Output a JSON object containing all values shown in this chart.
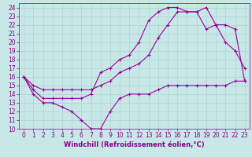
{
  "xlabel": "Windchill (Refroidissement éolien,°C)",
  "bg_color": "#c8e8e8",
  "line_color": "#990099",
  "xlim": [
    -0.5,
    23.5
  ],
  "ylim": [
    10,
    24.5
  ],
  "xticks": [
    0,
    1,
    2,
    3,
    4,
    5,
    6,
    7,
    8,
    9,
    10,
    11,
    12,
    13,
    14,
    15,
    16,
    17,
    18,
    19,
    20,
    21,
    22,
    23
  ],
  "yticks": [
    10,
    11,
    12,
    13,
    14,
    15,
    16,
    17,
    18,
    19,
    20,
    21,
    22,
    23,
    24
  ],
  "line1_x": [
    0,
    1,
    2,
    3,
    4,
    5,
    6,
    7,
    8,
    9,
    10,
    11,
    12,
    13,
    14,
    15,
    16,
    17,
    18,
    19,
    20,
    21,
    22,
    23
  ],
  "line1_y": [
    16.0,
    14.0,
    13.0,
    13.0,
    12.5,
    12.0,
    11.0,
    10.0,
    10.0,
    12.0,
    13.5,
    14.0,
    14.0,
    14.0,
    14.5,
    15.0,
    15.0,
    15.0,
    15.0,
    15.0,
    15.0,
    15.0,
    15.5,
    15.5
  ],
  "line2_x": [
    0,
    1,
    2,
    3,
    4,
    5,
    6,
    7,
    8,
    9,
    10,
    11,
    12,
    13,
    14,
    15,
    16,
    17,
    18,
    19,
    20,
    21,
    22,
    23
  ],
  "line2_y": [
    16.0,
    14.5,
    13.5,
    13.5,
    13.5,
    13.5,
    13.5,
    14.0,
    16.5,
    17.0,
    18.0,
    18.5,
    20.0,
    22.5,
    23.5,
    24.0,
    24.0,
    23.5,
    23.5,
    21.5,
    22.0,
    20.0,
    19.0,
    17.0
  ],
  "line3_x": [
    0,
    1,
    2,
    3,
    4,
    5,
    6,
    7,
    8,
    9,
    10,
    11,
    12,
    13,
    14,
    15,
    16,
    17,
    18,
    19,
    20,
    21,
    22,
    23
  ],
  "line3_y": [
    16.0,
    15.0,
    14.5,
    14.5,
    14.5,
    14.5,
    14.5,
    14.5,
    15.0,
    15.5,
    16.5,
    17.0,
    17.5,
    18.5,
    20.5,
    22.0,
    23.5,
    23.5,
    23.5,
    24.0,
    22.0,
    22.0,
    21.5,
    15.5
  ],
  "grid_color": "#aacccc",
  "font_color": "#880088",
  "marker": "+",
  "markersize": 3,
  "markeredgewidth": 0.8,
  "linewidth": 0.8,
  "tick_fontsize": 5.5,
  "xlabel_fontsize": 6.0
}
